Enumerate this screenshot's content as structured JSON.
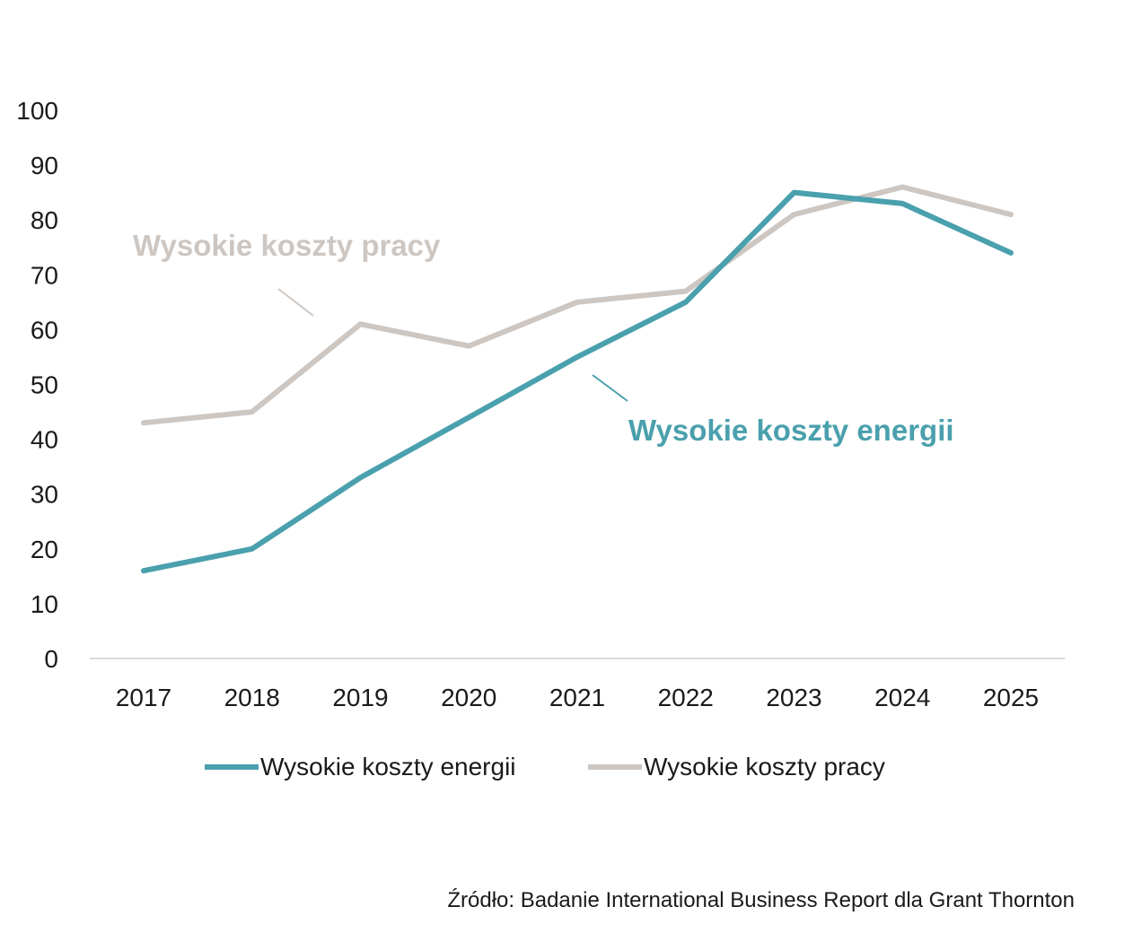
{
  "chart_data": {
    "type": "line",
    "x": [
      "2017",
      "2018",
      "2019",
      "2020",
      "2021",
      "2022",
      "2023",
      "2024",
      "2025"
    ],
    "series": [
      {
        "name": "Wysokie koszty energii",
        "color": "#4aa0ad",
        "values": [
          16,
          20,
          33,
          44,
          55,
          65,
          85,
          83,
          74
        ]
      },
      {
        "name": "Wysokie koszty pracy",
        "color": "#cdc6c1",
        "values": [
          43,
          45,
          61,
          57,
          65,
          67,
          81,
          86,
          81
        ]
      }
    ],
    "y_ticks": [
      "0",
      "10",
      "20",
      "30",
      "40",
      "50",
      "60",
      "70",
      "80",
      "90",
      "100"
    ],
    "ylim": [
      0,
      100
    ],
    "grid": false,
    "legend": "bottom",
    "annotations": [
      {
        "text": "Wysokie koszty pracy",
        "series": "Wysokie koszty pracy"
      },
      {
        "text": "Wysokie koszty energii",
        "series": "Wysokie koszty energii"
      }
    ],
    "source": "Źródło:  Badanie International Business Report dla Grant Thornton"
  }
}
